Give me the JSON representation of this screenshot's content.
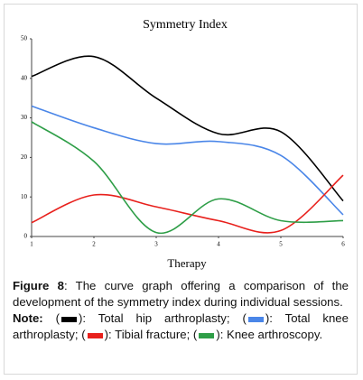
{
  "chart_data": {
    "type": "line",
    "title": "Symmetry Index",
    "xlabel": "Therapy",
    "x": [
      1,
      2,
      3,
      4,
      5,
      6
    ],
    "xlim": [
      1,
      6
    ],
    "xticks": [
      1,
      2,
      3,
      4,
      5,
      6
    ],
    "ylim": [
      0,
      50
    ],
    "yticks": [
      0,
      10,
      20,
      30,
      40,
      50
    ],
    "series": [
      {
        "name": "Total hip arthroplasty",
        "color": "#000000",
        "values": [
          40.5,
          45.5,
          35,
          26,
          26.5,
          9
        ]
      },
      {
        "name": "Total knee arthroplasty",
        "color": "#4a86e8",
        "values": [
          33,
          27.5,
          23.5,
          24,
          20.5,
          5.5
        ]
      },
      {
        "name": "Tibial fracture",
        "color": "#e8201c",
        "values": [
          3.5,
          10.5,
          7.5,
          4,
          1.5,
          15.5
        ]
      },
      {
        "name": "Knee arthroscopy",
        "color": "#2e9e47",
        "values": [
          29,
          19,
          1,
          9.5,
          4,
          4
        ]
      }
    ]
  },
  "caption": {
    "label": "Figure 8",
    "text": ": The curve graph offering a comparison of the development of the symmetry index during individual sessions."
  },
  "note": {
    "label": "Note:",
    "open": "(",
    "close": "):",
    "separator": ";",
    "end": "."
  }
}
